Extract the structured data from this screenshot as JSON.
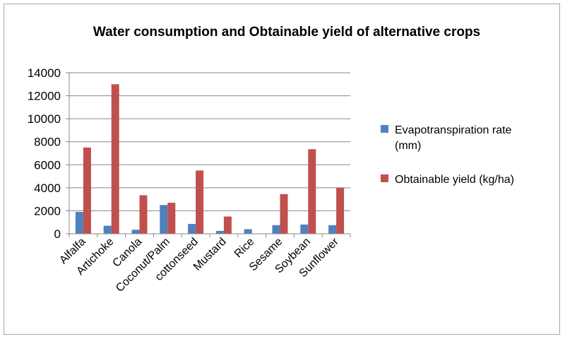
{
  "chart_data": {
    "type": "bar",
    "title": "Water consumption and Obtainable yield of alternative crops",
    "xlabel": "",
    "ylabel": "",
    "categories": [
      "Alfalfa",
      "Artichoke",
      "Canola",
      "Coconut/Palm",
      "cottonseed",
      "Mustard",
      "Rice",
      "Sesame",
      "Soybean",
      "Sunflower"
    ],
    "series": [
      {
        "name": "Evapotranspiration rate (mm)",
        "name_lines": [
          "Evapotranspiration rate",
          "(mm)"
        ],
        "color": "#4f81bd",
        "values": [
          1900,
          700,
          350,
          2500,
          850,
          250,
          400,
          750,
          800,
          750
        ]
      },
      {
        "name": "Obtainable yield (kg/ha)",
        "name_lines": [
          "Obtainable yield (kg/ha)"
        ],
        "color": "#c0504d",
        "values": [
          7500,
          13000,
          3350,
          2700,
          5500,
          1500,
          0,
          3450,
          7350,
          4000
        ]
      }
    ],
    "ylim": [
      0,
      14000
    ],
    "yticks": [
      "0",
      "2000",
      "4000",
      "6000",
      "8000",
      "10000",
      "12000",
      "14000"
    ],
    "grid": true,
    "legend": "right"
  }
}
